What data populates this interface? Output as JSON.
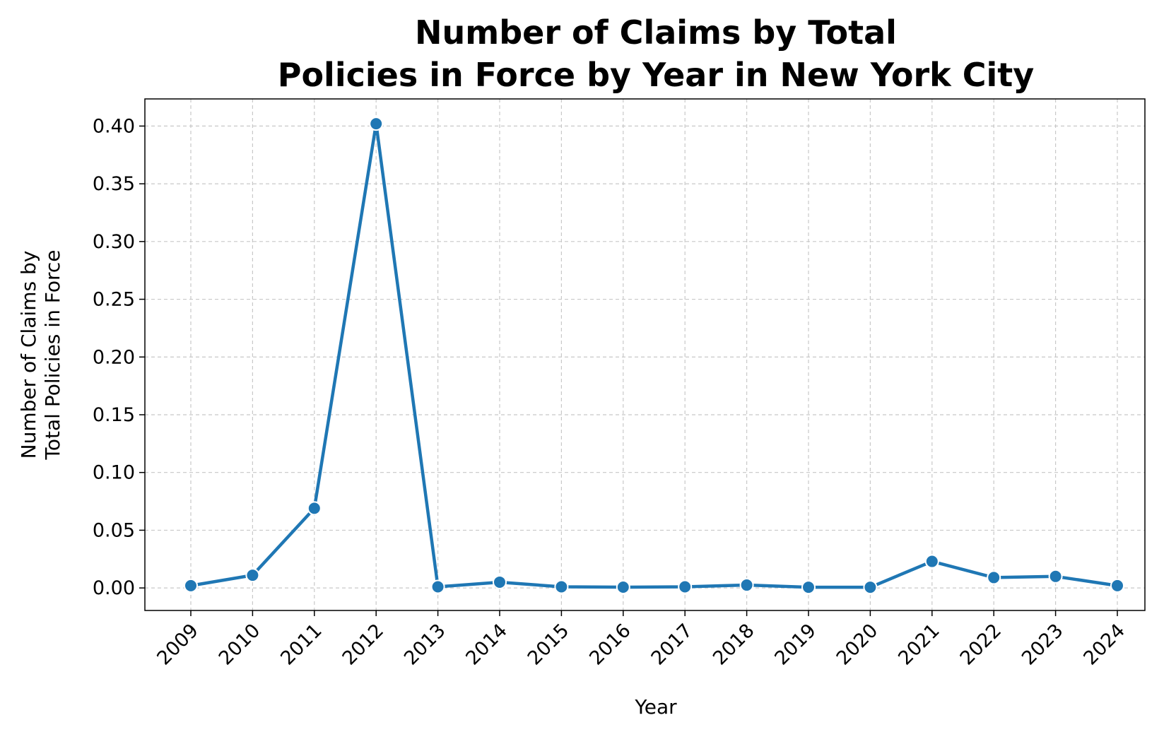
{
  "chart_data": {
    "type": "line",
    "title_lines": [
      "Number of Claims by Total",
      "Policies in Force by Year in New York City"
    ],
    "xlabel": "Year",
    "ylabel_lines": [
      "Number of Claims by",
      "Total Policies in Force"
    ],
    "x": [
      "2009",
      "2010",
      "2011",
      "2012",
      "2013",
      "2014",
      "2015",
      "2016",
      "2017",
      "2018",
      "2019",
      "2020",
      "2021",
      "2022",
      "2023",
      "2024"
    ],
    "series": [
      {
        "values": [
          0.002,
          0.011,
          0.069,
          0.402,
          0.001,
          0.005,
          0.001,
          0.0007,
          0.001,
          0.0025,
          0.0006,
          0.0006,
          0.023,
          0.009,
          0.01,
          0.002
        ],
        "color": "#1f77b4"
      }
    ],
    "yticks": [
      "0.00",
      "0.05",
      "0.10",
      "0.15",
      "0.20",
      "0.25",
      "0.30",
      "0.35",
      "0.40"
    ],
    "ylim": [
      -0.0195,
      0.4235
    ],
    "grid": true,
    "legend": "none"
  }
}
